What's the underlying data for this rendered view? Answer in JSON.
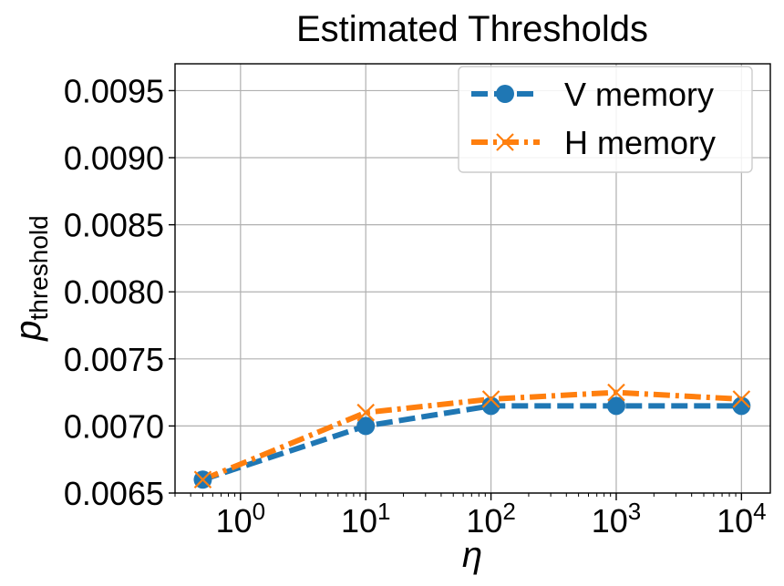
{
  "chart_data": {
    "type": "line",
    "title": "Estimated Thresholds",
    "xlabel": "η",
    "ylabel_main": "p",
    "ylabel_sub": "threshold",
    "xscale": "log",
    "xlim": [
      0.3,
      17000
    ],
    "ylim": [
      0.0065,
      0.0097
    ],
    "grid": true,
    "legend_position": "top-right",
    "x_ticks": [
      {
        "value": 1,
        "base": "10",
        "exp": "0"
      },
      {
        "value": 10,
        "base": "10",
        "exp": "1"
      },
      {
        "value": 100,
        "base": "10",
        "exp": "2"
      },
      {
        "value": 1000,
        "base": "10",
        "exp": "3"
      },
      {
        "value": 10000,
        "base": "10",
        "exp": "4"
      }
    ],
    "y_ticks": [
      {
        "value": 0.0065,
        "label": "0.0065"
      },
      {
        "value": 0.007,
        "label": "0.0070"
      },
      {
        "value": 0.0075,
        "label": "0.0075"
      },
      {
        "value": 0.008,
        "label": "0.0080"
      },
      {
        "value": 0.0085,
        "label": "0.0085"
      },
      {
        "value": 0.009,
        "label": "0.0090"
      },
      {
        "value": 0.0095,
        "label": "0.0095"
      }
    ],
    "x": [
      0.5,
      10,
      100,
      1000,
      10000
    ],
    "series": [
      {
        "name": "V memory",
        "values": [
          0.0066,
          0.007,
          0.00715,
          0.00715,
          0.00715
        ],
        "color": "#1f77b4",
        "marker": "circle",
        "dash": "dashed"
      },
      {
        "name": "H memory",
        "values": [
          0.0066,
          0.0071,
          0.0072,
          0.00725,
          0.0072
        ],
        "color": "#ff7f0e",
        "marker": "x",
        "dash": "dashdot"
      }
    ]
  }
}
